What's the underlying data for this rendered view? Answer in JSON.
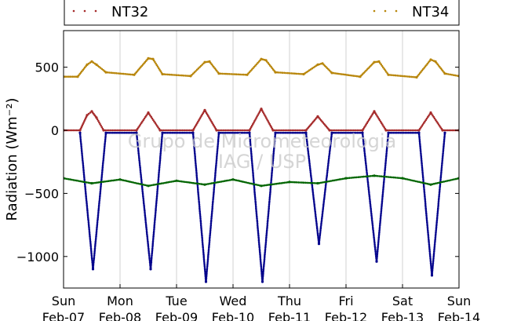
{
  "chart_data": {
    "type": "scatter",
    "ylabel": "Radiation (Wm⁻²)",
    "ylim": [
      -1250,
      790
    ],
    "xlim": [
      "2012-02-07",
      "2012-02-14"
    ],
    "yticks": [
      500,
      0,
      -500,
      -1000
    ],
    "ytick_labels": [
      "500",
      "0",
      "−500",
      "−1000"
    ],
    "xtick_labels": [
      [
        "Sun",
        "Feb-07"
      ],
      [
        "Mon",
        "Feb-08"
      ],
      [
        "Tue",
        "Feb-09"
      ],
      [
        "Wed",
        "Feb-10"
      ],
      [
        "Thu",
        "Feb-11"
      ],
      [
        "Fri",
        "Feb-12"
      ],
      [
        "Sat",
        "Feb-13"
      ],
      [
        "Sun",
        "Feb-14"
      ]
    ],
    "grid": true,
    "legend": {
      "placement": "top",
      "entries": [
        "NT32",
        "NT34"
      ]
    },
    "watermark": [
      "Grupo de Micrometeorologia",
      "IAG / USP"
    ],
    "series": [
      {
        "name": "NT34",
        "color": "#b8860b",
        "x": [
          "2012-02-07 00:00",
          "2012-02-07 06:00",
          "2012-02-07 10:00",
          "2012-02-07 12:00",
          "2012-02-07 14:00",
          "2012-02-07 18:00",
          "2012-02-08 06:00",
          "2012-02-08 12:00",
          "2012-02-08 14:00",
          "2012-02-08 18:00",
          "2012-02-09 06:00",
          "2012-02-09 12:00",
          "2012-02-09 14:00",
          "2012-02-09 18:00",
          "2012-02-10 06:00",
          "2012-02-10 12:00",
          "2012-02-10 14:00",
          "2012-02-10 18:00",
          "2012-02-11 06:00",
          "2012-02-11 12:00",
          "2012-02-11 14:00",
          "2012-02-11 18:00",
          "2012-02-12 06:00",
          "2012-02-12 12:00",
          "2012-02-12 14:00",
          "2012-02-12 18:00",
          "2012-02-13 06:00",
          "2012-02-13 12:00",
          "2012-02-13 14:00",
          "2012-02-13 18:00",
          "2012-02-14 00:00"
        ],
        "y": [
          425,
          425,
          520,
          545,
          520,
          460,
          440,
          570,
          565,
          445,
          430,
          540,
          545,
          450,
          440,
          565,
          555,
          460,
          445,
          520,
          530,
          455,
          425,
          540,
          545,
          440,
          420,
          560,
          545,
          450,
          430
        ]
      },
      {
        "name": "NT32",
        "color": "#a52a2a",
        "x": [
          "2012-02-07 00:00",
          "2012-02-07 07:00",
          "2012-02-07 10:00",
          "2012-02-07 12:00",
          "2012-02-07 14:00",
          "2012-02-07 17:00",
          "2012-02-08 07:00",
          "2012-02-08 12:00",
          "2012-02-08 17:00",
          "2012-02-09 07:00",
          "2012-02-09 12:00",
          "2012-02-09 17:00",
          "2012-02-10 07:00",
          "2012-02-10 12:00",
          "2012-02-10 17:00",
          "2012-02-11 07:00",
          "2012-02-11 12:00",
          "2012-02-11 17:00",
          "2012-02-12 07:00",
          "2012-02-12 12:00",
          "2012-02-12 17:00",
          "2012-02-13 07:00",
          "2012-02-13 12:00",
          "2012-02-13 17:00",
          "2012-02-14 00:00"
        ],
        "y": [
          0,
          0,
          120,
          150,
          100,
          0,
          0,
          140,
          0,
          0,
          160,
          0,
          0,
          170,
          0,
          0,
          110,
          0,
          0,
          150,
          0,
          0,
          140,
          0,
          0
        ]
      },
      {
        "name": "",
        "color": "#00008b",
        "x": [
          "2012-02-07 07:00",
          "2012-02-07 12:30",
          "2012-02-07 18:00",
          "2012-02-08 07:00",
          "2012-02-08 13:00",
          "2012-02-08 18:00",
          "2012-02-09 07:00",
          "2012-02-09 12:30",
          "2012-02-09 18:00",
          "2012-02-10 07:00",
          "2012-02-10 12:30",
          "2012-02-10 18:00",
          "2012-02-11 07:00",
          "2012-02-11 12:30",
          "2012-02-11 18:00",
          "2012-02-12 07:00",
          "2012-02-12 13:00",
          "2012-02-12 18:00",
          "2012-02-13 07:00",
          "2012-02-13 12:30",
          "2012-02-13 18:00"
        ],
        "y": [
          -20,
          -1100,
          -20,
          -20,
          -1100,
          -20,
          -20,
          -1200,
          -20,
          -20,
          -1200,
          -20,
          -20,
          -900,
          -20,
          -20,
          -1040,
          -20,
          -20,
          -1150,
          -20
        ]
      },
      {
        "name": "",
        "color": "#006400",
        "x": [
          "2012-02-07 00:00",
          "2012-02-07 12:00",
          "2012-02-08 00:00",
          "2012-02-08 12:00",
          "2012-02-09 00:00",
          "2012-02-09 12:00",
          "2012-02-10 00:00",
          "2012-02-10 12:00",
          "2012-02-11 00:00",
          "2012-02-11 12:00",
          "2012-02-12 00:00",
          "2012-02-12 12:00",
          "2012-02-13 00:00",
          "2012-02-13 12:00",
          "2012-02-14 00:00"
        ],
        "y": [
          -380,
          -420,
          -390,
          -440,
          -400,
          -430,
          -390,
          -440,
          -410,
          -420,
          -380,
          -360,
          -380,
          -430,
          -380
        ]
      }
    ]
  }
}
